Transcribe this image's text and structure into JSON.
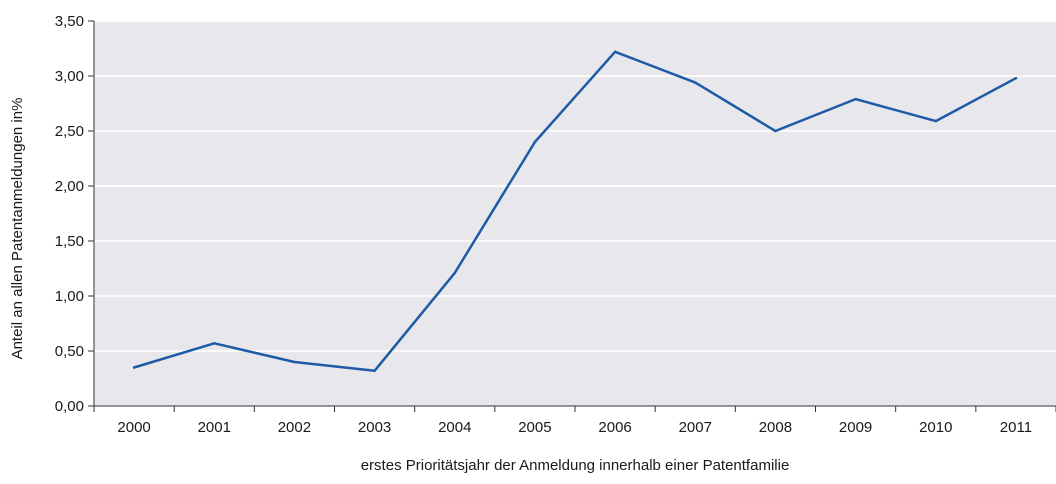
{
  "chart_data": {
    "type": "line",
    "title": "",
    "xlabel": "erstes Prioritätsjahr der Anmeldung innerhalb einer Patentfamilie",
    "ylabel": "Anteil an allen Patentanmeldungen in%",
    "categories": [
      "2000",
      "2001",
      "2002",
      "2003",
      "2004",
      "2005",
      "2006",
      "2007",
      "2008",
      "2009",
      "2010",
      "2011"
    ],
    "series": [
      {
        "values": [
          0.35,
          0.57,
          0.4,
          0.32,
          1.21,
          2.4,
          3.22,
          2.94,
          2.5,
          2.79,
          2.59,
          2.98
        ]
      }
    ],
    "ylim": [
      0,
      3.5
    ],
    "y_ticks": [
      "0,00",
      "0,50",
      "1,00",
      "1,50",
      "2,00",
      "2,50",
      "3,00",
      "3,50"
    ],
    "grid": "horizontal",
    "legend": "none",
    "colors": {
      "line": "#1f5aa6",
      "plot_background": "#e8e8ec",
      "grid": "#ffffff",
      "axis": "#333333"
    }
  }
}
